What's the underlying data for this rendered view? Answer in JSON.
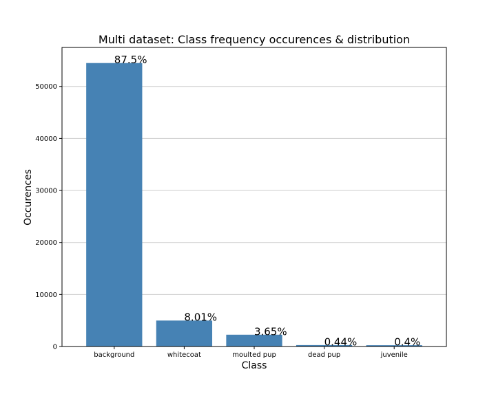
{
  "chart_data": {
    "type": "bar",
    "title": "Multi dataset: Class frequency occurences & distribution",
    "xlabel": "Class",
    "ylabel": "Occurences",
    "categories": [
      "background",
      "whitecoat",
      "moulted pup",
      "dead pup",
      "juvenile"
    ],
    "values": [
      54500,
      4990,
      2270,
      275,
      250
    ],
    "percent_labels": [
      "87.5%",
      "8.01%",
      "3.65%",
      "0.44%",
      "0.4%"
    ],
    "ylim": [
      0,
      57500
    ],
    "yticks": [
      0,
      10000,
      20000,
      30000,
      40000,
      50000
    ],
    "ytick_labels": [
      "0",
      "10000",
      "20000",
      "30000",
      "40000",
      "50000"
    ],
    "grid": "y",
    "bar_color": "#4682b4",
    "grid_color": "#cccccc"
  }
}
